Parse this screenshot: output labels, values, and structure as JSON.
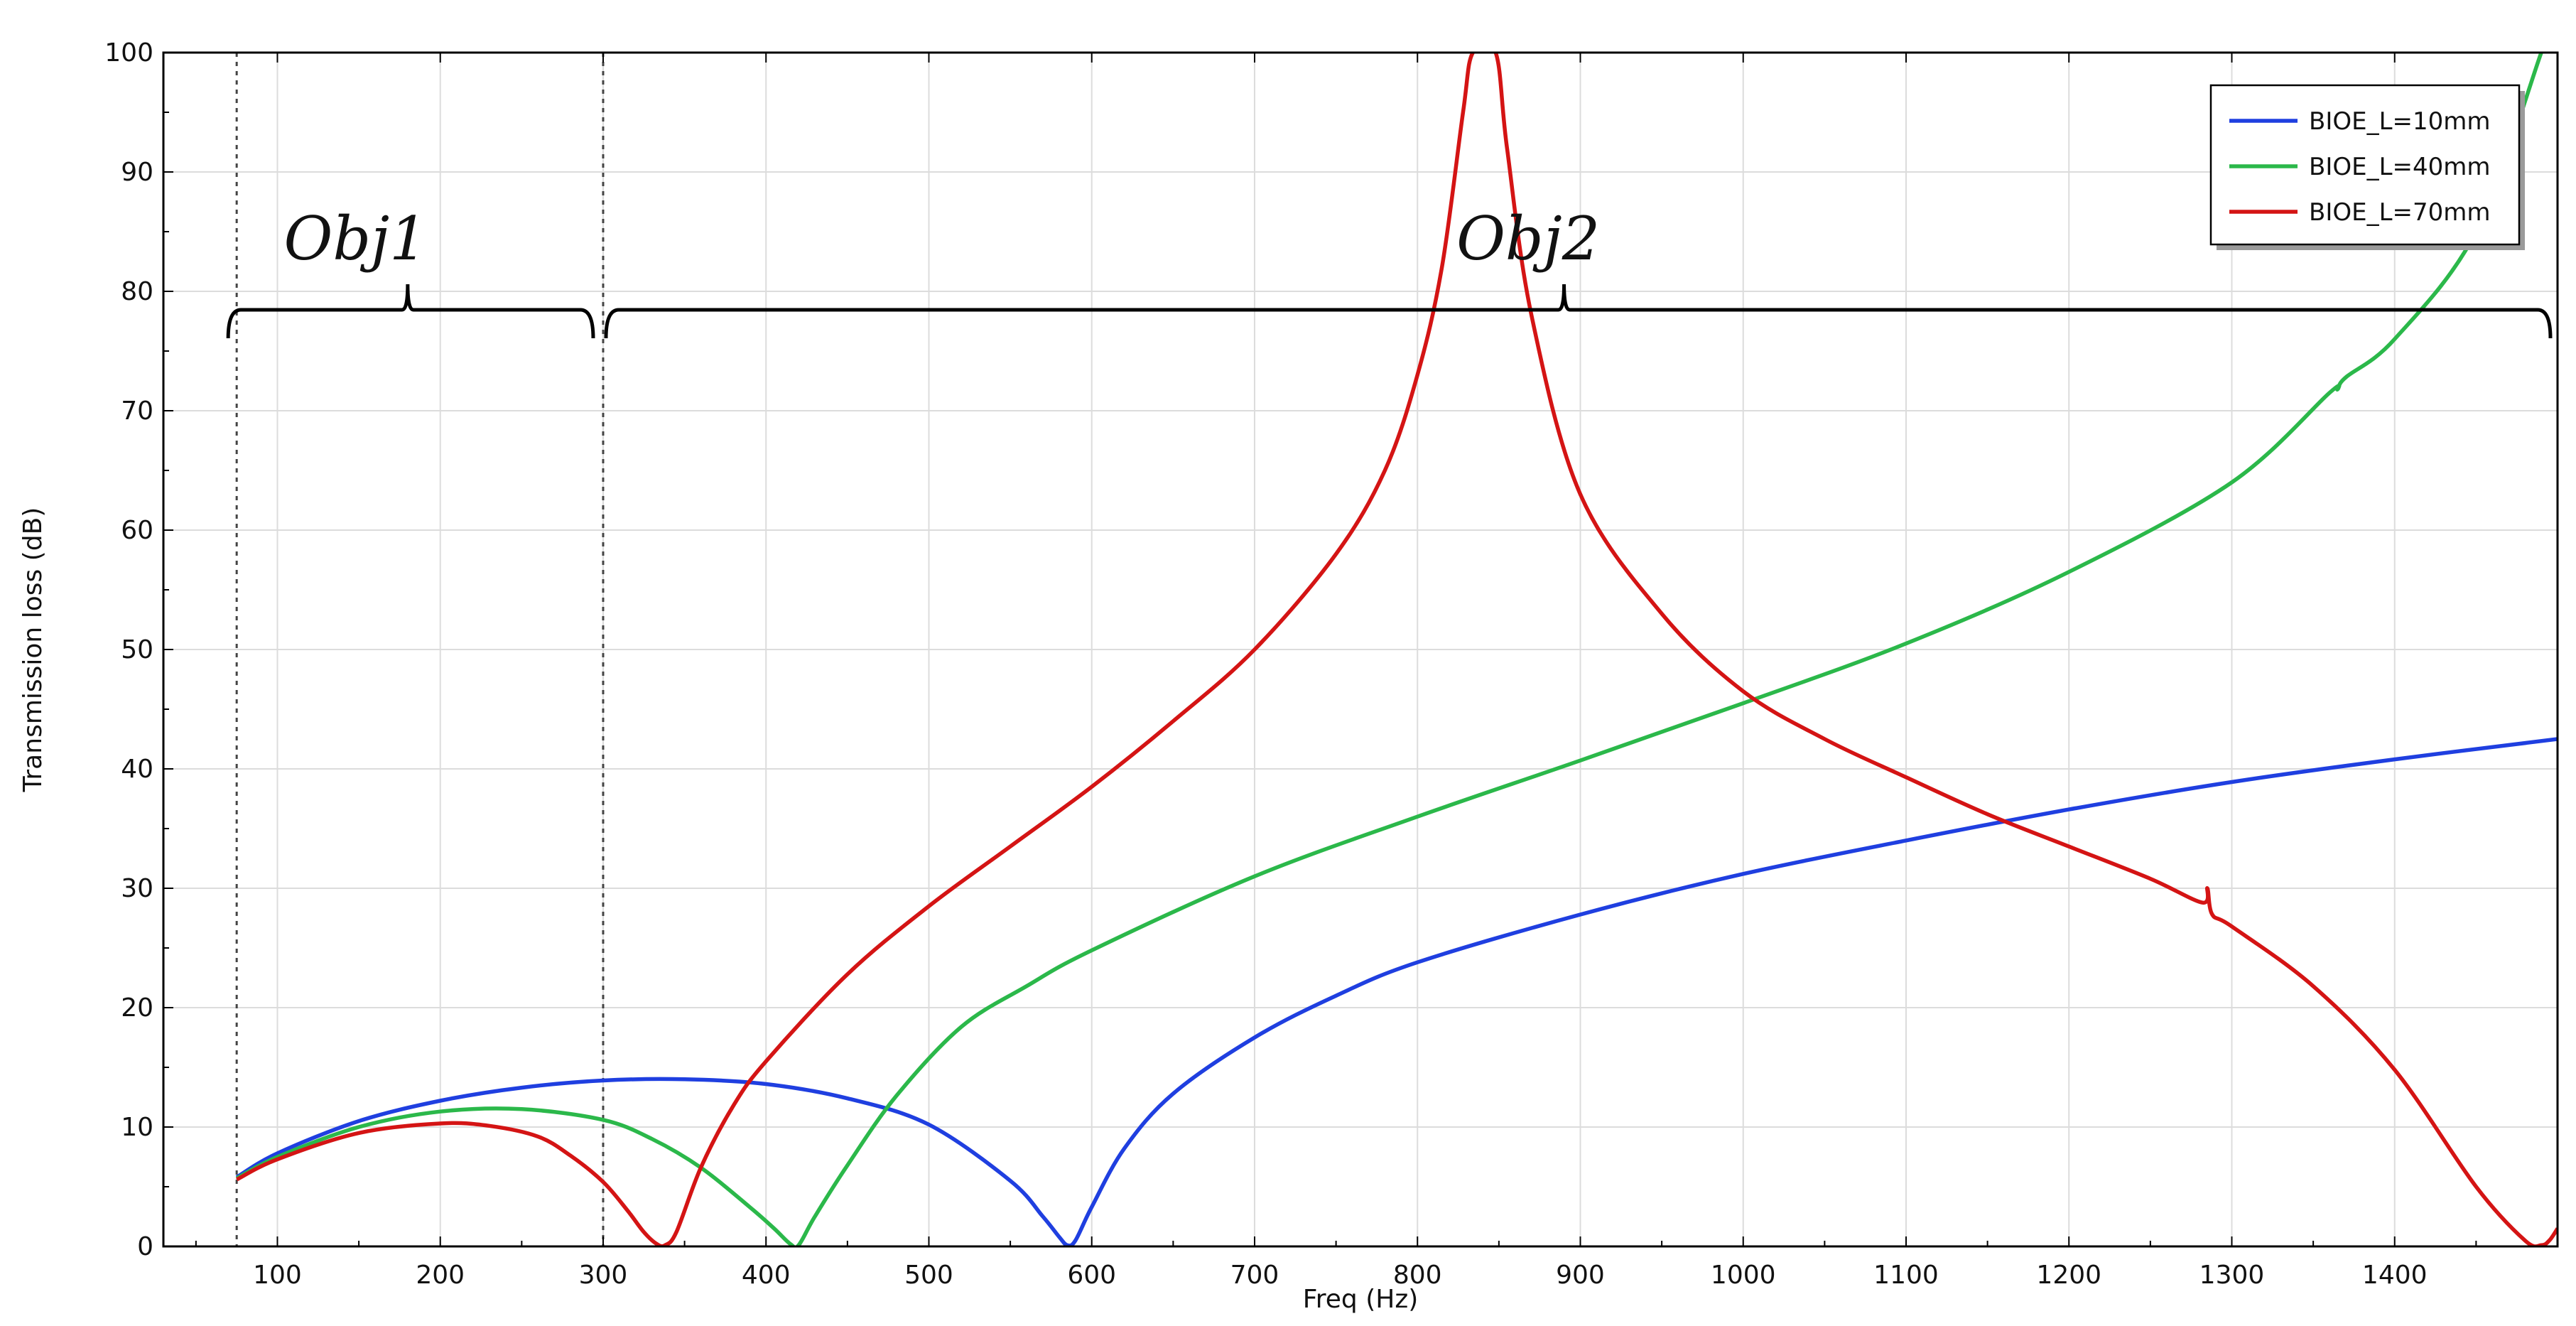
{
  "chart_data": {
    "type": "line",
    "title": "",
    "xlabel": "Freq (Hz)",
    "ylabel": "Transmission loss (dB)",
    "xlim": [
      30,
      1500
    ],
    "ylim": [
      0,
      100
    ],
    "xticks": [
      "100",
      "200",
      "300",
      "400",
      "500",
      "600",
      "700",
      "800",
      "900",
      "1000",
      "1100",
      "1200",
      "1300",
      "1400"
    ],
    "yticks": [
      "0",
      "10",
      "20",
      "30",
      "40",
      "50",
      "60",
      "70",
      "80",
      "90",
      "100"
    ],
    "grid": true,
    "legend_position": "top-right",
    "annotations": [
      {
        "text": "Obj1",
        "x_from": 75,
        "x_to": 300
      },
      {
        "text": "Obj2",
        "x_from": 300,
        "x_to": 1500
      }
    ],
    "reference_lines": [
      75,
      300
    ],
    "series": [
      {
        "name": "BIOE_L=10mm",
        "color": "#1f3fe0",
        "x": [
          75,
          100,
          150,
          200,
          250,
          300,
          350,
          400,
          450,
          500,
          550,
          570,
          580,
          585,
          590,
          600,
          620,
          650,
          700,
          750,
          800,
          900,
          1000,
          1100,
          1200,
          1300,
          1400,
          1500
        ],
        "y": [
          5.8,
          7.8,
          10.5,
          12.2,
          13.3,
          13.9,
          14.0,
          13.6,
          12.4,
          10.2,
          5.5,
          2.5,
          0.8,
          0.1,
          0.5,
          3.3,
          8.2,
          12.8,
          17.5,
          21.0,
          23.8,
          27.8,
          31.2,
          34.0,
          36.6,
          38.9,
          40.8,
          42.5
        ]
      },
      {
        "name": "BIOE_L=40mm",
        "color": "#2bb84a",
        "x": [
          75,
          100,
          150,
          200,
          250,
          300,
          330,
          360,
          390,
          405,
          415,
          420,
          430,
          450,
          480,
          520,
          560,
          600,
          700,
          800,
          900,
          1000,
          1100,
          1200,
          1300,
          1360,
          1365,
          1370,
          1400,
          1450,
          1490
        ],
        "y": [
          5.7,
          7.5,
          10.0,
          11.3,
          11.5,
          10.6,
          9.0,
          6.6,
          3.3,
          1.5,
          0.2,
          0.1,
          2.5,
          6.8,
          12.6,
          18.4,
          21.8,
          24.8,
          31.0,
          36.0,
          40.7,
          45.5,
          50.5,
          56.5,
          64.0,
          71.5,
          71.8,
          72.8,
          76.0,
          85.0,
          100.0
        ]
      },
      {
        "name": "BIOE_L=70mm",
        "color": "#d41414",
        "x": [
          75,
          100,
          150,
          200,
          230,
          260,
          280,
          300,
          315,
          325,
          333,
          338,
          345,
          360,
          380,
          400,
          450,
          500,
          550,
          600,
          650,
          700,
          750,
          780,
          800,
          815,
          828,
          834,
          848,
          855,
          870,
          900,
          950,
          1000,
          1050,
          1100,
          1150,
          1200,
          1250,
          1282,
          1285,
          1288,
          1300,
          1350,
          1400,
          1450,
          1480,
          1490,
          1495,
          1500
        ],
        "y": [
          5.6,
          7.3,
          9.5,
          10.3,
          10.1,
          9.2,
          7.6,
          5.4,
          3.0,
          1.2,
          0.2,
          0.1,
          1.2,
          6.6,
          11.8,
          15.5,
          22.8,
          28.5,
          33.5,
          38.5,
          44.0,
          50.0,
          58.0,
          65.0,
          73.0,
          82.0,
          95.0,
          100.0,
          100.0,
          92.0,
          78.0,
          63.0,
          53.0,
          46.5,
          42.5,
          39.3,
          36.2,
          33.5,
          30.8,
          28.8,
          30.0,
          27.8,
          26.8,
          21.8,
          14.8,
          5.0,
          0.5,
          0.1,
          0.5,
          1.5
        ]
      }
    ]
  }
}
